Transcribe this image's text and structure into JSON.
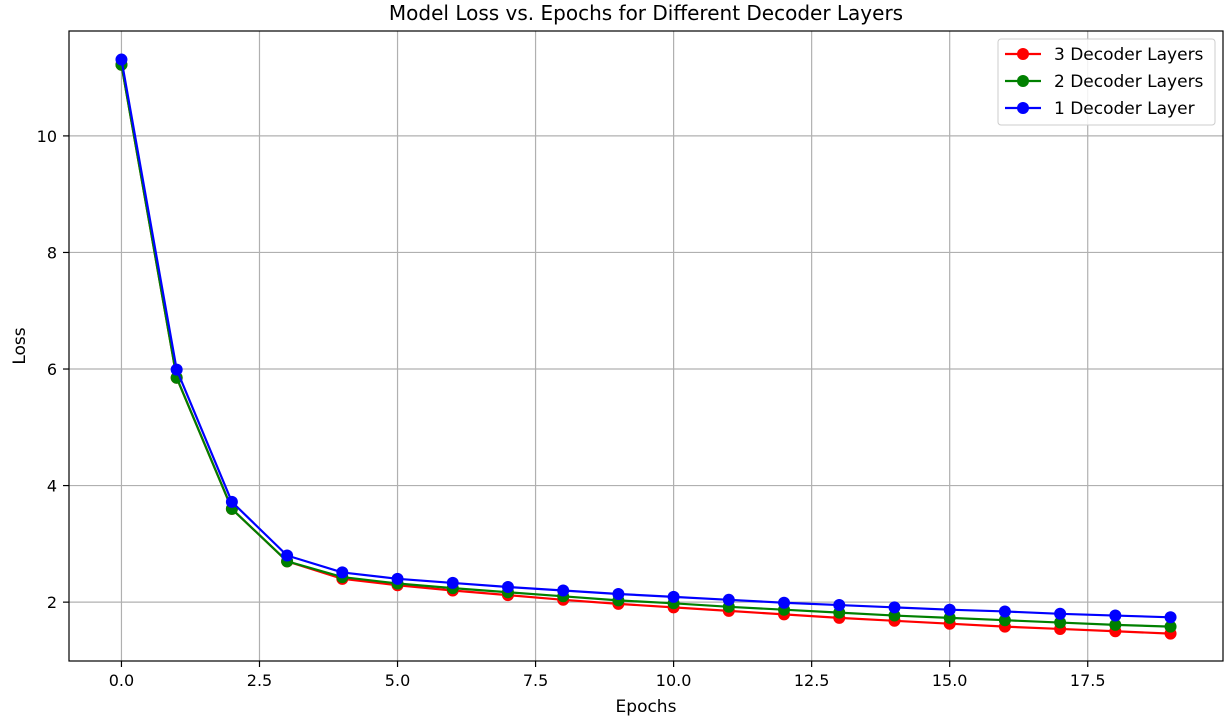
{
  "chart_data": {
    "type": "line",
    "title": "Model Loss vs. Epochs for Different Decoder Layers",
    "xlabel": "Epochs",
    "ylabel": "Loss",
    "xlim": [
      -0.95,
      19.95
    ],
    "ylim": [
      0.99,
      11.8
    ],
    "xticks": [
      0.0,
      2.5,
      5.0,
      7.5,
      10.0,
      12.5,
      15.0,
      17.5
    ],
    "xtick_labels": [
      "0.0",
      "2.5",
      "5.0",
      "7.5",
      "10.0",
      "12.5",
      "15.0",
      "17.5"
    ],
    "yticks": [
      2,
      4,
      6,
      8,
      10
    ],
    "ytick_labels": [
      "2",
      "4",
      "6",
      "8",
      "10"
    ],
    "grid": true,
    "legend_position": "top-right",
    "x": [
      0,
      1,
      2,
      3,
      4,
      5,
      6,
      7,
      8,
      9,
      10,
      11,
      12,
      13,
      14,
      15,
      16,
      17,
      18,
      19
    ],
    "series": [
      {
        "name": "3 Decoder Layers",
        "color": "#ff0000",
        "values": [
          11.22,
          5.85,
          3.6,
          2.7,
          2.4,
          2.29,
          2.2,
          2.12,
          2.04,
          1.97,
          1.91,
          1.85,
          1.79,
          1.73,
          1.68,
          1.63,
          1.58,
          1.54,
          1.5,
          1.46
        ]
      },
      {
        "name": "2 Decoder Layers",
        "color": "#008000",
        "values": [
          11.22,
          5.85,
          3.6,
          2.7,
          2.43,
          2.32,
          2.24,
          2.17,
          2.1,
          2.03,
          1.98,
          1.92,
          1.87,
          1.82,
          1.77,
          1.73,
          1.69,
          1.65,
          1.61,
          1.58
        ]
      },
      {
        "name": "1 Decoder Layer",
        "color": "#0000ff",
        "values": [
          11.31,
          5.99,
          3.72,
          2.8,
          2.51,
          2.4,
          2.33,
          2.26,
          2.2,
          2.14,
          2.09,
          2.04,
          1.99,
          1.95,
          1.91,
          1.87,
          1.84,
          1.8,
          1.77,
          1.74
        ]
      }
    ]
  }
}
